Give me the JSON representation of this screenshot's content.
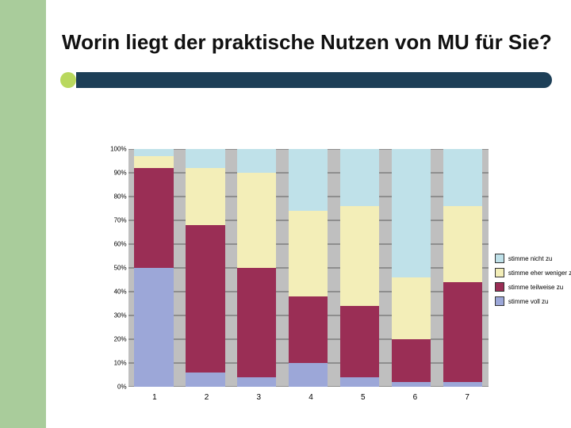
{
  "layout": {
    "sideband_color": "#a9cc9b",
    "accent_dot_color": "#b9d85e",
    "accent_bar_color": "#1d3f57"
  },
  "title": "Worin liegt der praktische Nutzen von MU für Sie?",
  "chart": {
    "type": "stacked_bar_100pct",
    "categories": [
      "1",
      "2",
      "3",
      "4",
      "5",
      "6",
      "7"
    ],
    "y_ticks": [
      "0%",
      "10%",
      "20%",
      "30%",
      "40%",
      "50%",
      "60%",
      "70%",
      "80%",
      "90%",
      "100%"
    ],
    "plot_background": "#bfbfbf",
    "gridline_color": "#5c5c5c",
    "series": [
      {
        "key": "voll",
        "label": "stimme voll zu",
        "color": "#9ca7d8"
      },
      {
        "key": "teil",
        "label": "stimme teilweise zu",
        "color": "#9a2e55"
      },
      {
        "key": "weniger",
        "label": "stimme eher weniger zu",
        "color": "#f3eeb8"
      },
      {
        "key": "nicht",
        "label": "stimme nicht zu",
        "color": "#bfe1e9"
      }
    ],
    "legend_order": [
      "nicht",
      "weniger",
      "teil",
      "voll"
    ],
    "data_pct": {
      "1": {
        "voll": 50,
        "teil": 42,
        "weniger": 5,
        "nicht": 3
      },
      "2": {
        "voll": 6,
        "teil": 62,
        "weniger": 24,
        "nicht": 8
      },
      "3": {
        "voll": 4,
        "teil": 46,
        "weniger": 40,
        "nicht": 10
      },
      "4": {
        "voll": 10,
        "teil": 28,
        "weniger": 36,
        "nicht": 26
      },
      "5": {
        "voll": 4,
        "teil": 30,
        "weniger": 42,
        "nicht": 24
      },
      "6": {
        "voll": 2,
        "teil": 18,
        "weniger": 26,
        "nicht": 54
      },
      "7": {
        "voll": 2,
        "teil": 42,
        "weniger": 32,
        "nicht": 24
      }
    }
  }
}
